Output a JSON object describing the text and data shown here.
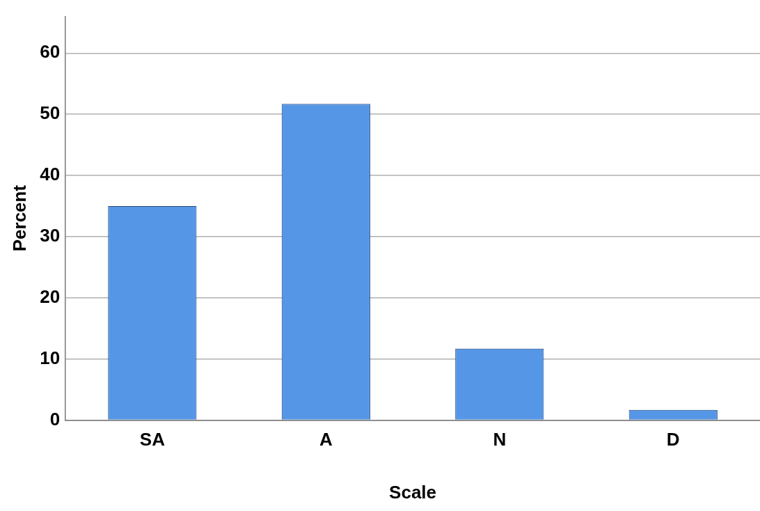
{
  "chart_data": {
    "type": "bar",
    "xlabel": "Scale",
    "ylabel": "Percent",
    "categories": [
      "SA",
      "A",
      "N",
      "D"
    ],
    "values": [
      35,
      51.7,
      11.7,
      1.7
    ],
    "color": "#5596e6",
    "ylim": [
      0,
      66
    ],
    "yticks": [
      0,
      10,
      20,
      30,
      40,
      50,
      60
    ],
    "grid": "y",
    "legend": false
  }
}
